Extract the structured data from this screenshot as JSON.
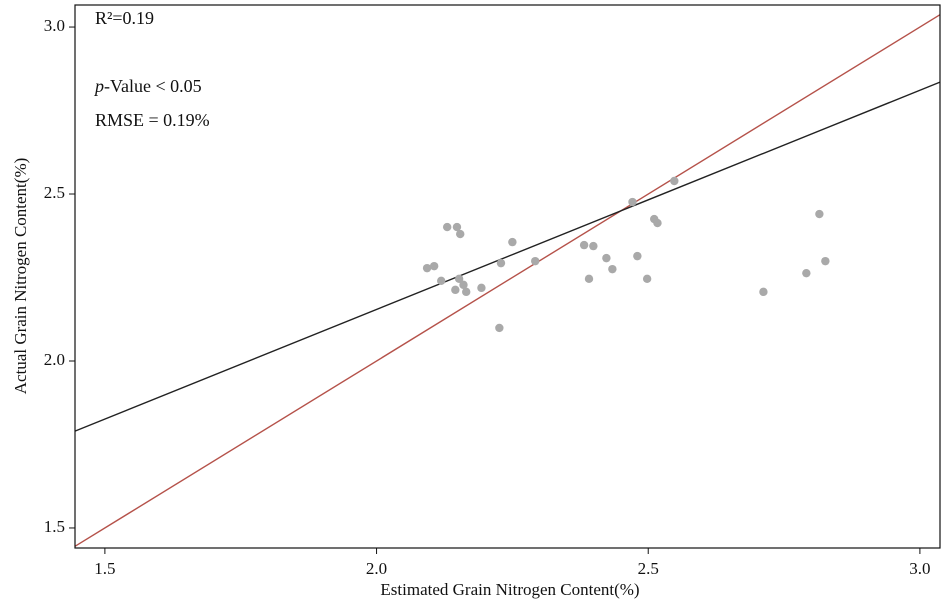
{
  "chart_data": {
    "type": "scatter",
    "x_label": "Estimated Grain Nitrogen Content(%)",
    "y_label": "Actual Grain Nitrogen Content(%)",
    "annotations": [
      "R²=0.19",
      "RMSE = 0.19%"
    ],
    "p_value_label": [
      "p",
      "-Value < 0.05"
    ],
    "xlim": [
      1.445,
      3.037
    ],
    "ylim": [
      1.44,
      3.066
    ],
    "xticks": [
      1.5,
      {
        "value": 2,
        "label": "2.0"
      },
      2.5,
      {
        "value": 3,
        "label": "3.0"
      }
    ],
    "yticks": [
      1.5,
      {
        "value": 2,
        "label": "2.0"
      },
      2.5,
      {
        "value": 3,
        "label": "3.0"
      }
    ],
    "color": "#a9a9a9",
    "x": [
      2.093,
      2.106,
      2.119,
      2.13,
      2.148,
      2.154,
      2.145,
      2.152,
      2.16,
      2.165,
      2.193,
      2.226,
      2.229,
      2.25,
      2.292,
      2.382,
      2.391,
      2.399,
      2.423,
      2.434,
      2.471,
      2.48,
      2.498,
      2.511,
      2.517,
      2.548,
      2.712,
      2.791,
      2.815,
      2.826
    ],
    "values": [
      2.278,
      2.284,
      2.24,
      2.401,
      2.401,
      2.38,
      2.213,
      2.246,
      2.228,
      2.207,
      2.219,
      2.099,
      2.293,
      2.356,
      2.299,
      2.347,
      2.246,
      2.344,
      2.308,
      2.275,
      2.476,
      2.314,
      2.246,
      2.425,
      2.413,
      2.539,
      2.207,
      2.263,
      2.44,
      2.299
    ],
    "lines": [
      {
        "color": "#b5524a",
        "x": [
          1.445,
          3.037
        ],
        "values": [
          1.445,
          3.037
        ]
      },
      {
        "color": "#222222",
        "x": [
          1.445,
          3.037
        ],
        "values": [
          1.79,
          2.835
        ]
      }
    ]
  }
}
